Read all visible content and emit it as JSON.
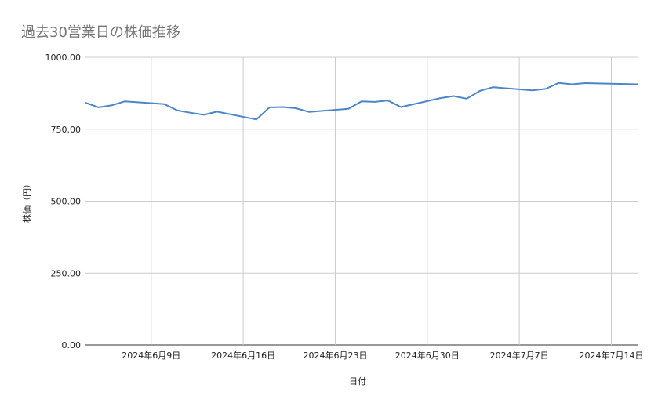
{
  "chart_data": {
    "type": "line",
    "title": "過去30営業日の株価推移",
    "xlabel": "日付",
    "ylabel": "株価（円）",
    "ylim": [
      0,
      1000
    ],
    "yticks": [
      0,
      250,
      500,
      750,
      1000
    ],
    "ytick_labels": [
      "0.00",
      "250.00",
      "500.00",
      "750.00",
      "1000.00"
    ],
    "xlim": [
      "2024-06-04",
      "2024-07-16"
    ],
    "xticks": [
      "2024-06-09",
      "2024-06-16",
      "2024-06-23",
      "2024-06-30",
      "2024-07-07",
      "2024-07-14"
    ],
    "xtick_labels": [
      "2024年6月9日",
      "2024年6月16日",
      "2024年6月23日",
      "2024年6月30日",
      "2024年7月7日",
      "2024年7月14日"
    ],
    "grid": true,
    "line_color": "#4a86c8",
    "x": [
      "2024-06-04",
      "2024-06-05",
      "2024-06-06",
      "2024-06-07",
      "2024-06-10",
      "2024-06-11",
      "2024-06-12",
      "2024-06-13",
      "2024-06-14",
      "2024-06-17",
      "2024-06-18",
      "2024-06-19",
      "2024-06-20",
      "2024-06-21",
      "2024-06-24",
      "2024-06-25",
      "2024-06-26",
      "2024-06-27",
      "2024-06-28",
      "2024-07-01",
      "2024-07-02",
      "2024-07-03",
      "2024-07-04",
      "2024-07-05",
      "2024-07-08",
      "2024-07-09",
      "2024-07-10",
      "2024-07-11",
      "2024-07-12",
      "2024-07-15",
      "2024-07-16"
    ],
    "values": [
      842,
      826,
      833,
      847,
      837,
      815,
      807,
      800,
      811,
      784,
      826,
      827,
      823,
      810,
      821,
      847,
      845,
      850,
      827,
      858,
      865,
      856,
      883,
      896,
      885,
      890,
      911,
      906,
      910,
      907,
      906
    ]
  }
}
